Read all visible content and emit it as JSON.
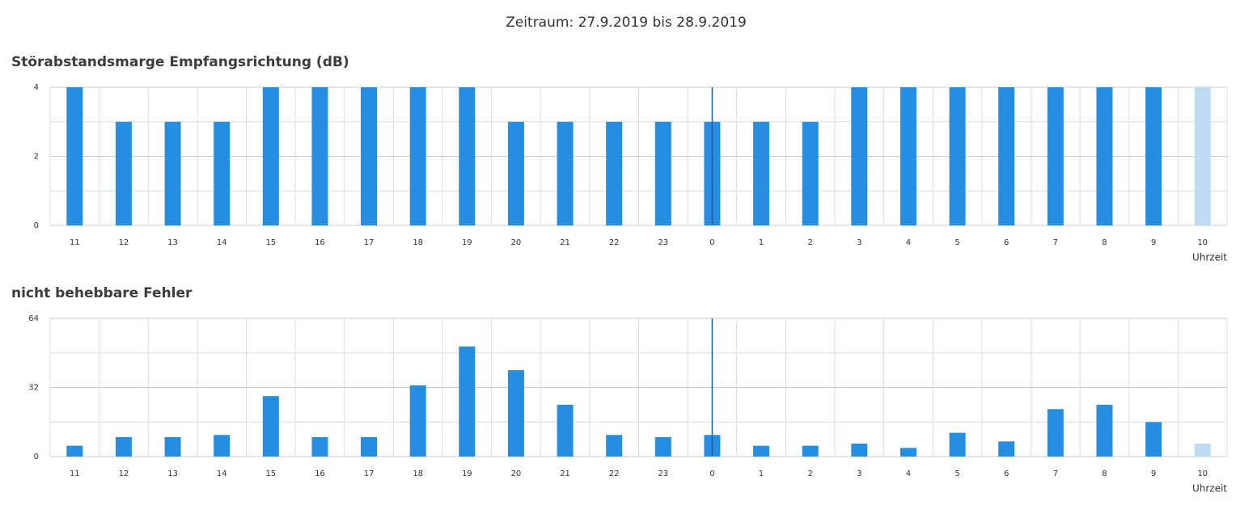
{
  "header": "Zeitraum: 27.9.2019 bis 28.9.2019",
  "chart_data": [
    {
      "type": "bar",
      "title": "Störabstandsmarge Empfangsrichtung (dB)",
      "x_label": "Uhrzeit",
      "categories": [
        "11",
        "12",
        "13",
        "14",
        "15",
        "16",
        "17",
        "18",
        "19",
        "20",
        "21",
        "22",
        "23",
        "0",
        "1",
        "2",
        "3",
        "4",
        "5",
        "6",
        "7",
        "8",
        "9",
        "10"
      ],
      "values": [
        4,
        3,
        3,
        3,
        4,
        4,
        4,
        4,
        4,
        3,
        3,
        3,
        3,
        3,
        3,
        3,
        4,
        4,
        4,
        4,
        4,
        4,
        4,
        4
      ],
      "colors": [
        "#268ee0",
        "#268ee0",
        "#268ee0",
        "#268ee0",
        "#268ee0",
        "#268ee0",
        "#268ee0",
        "#268ee0",
        "#268ee0",
        "#268ee0",
        "#268ee0",
        "#268ee0",
        "#268ee0",
        "#268ee0",
        "#268ee0",
        "#268ee0",
        "#268ee0",
        "#268ee0",
        "#268ee0",
        "#268ee0",
        "#268ee0",
        "#268ee0",
        "#268ee0",
        "#bcdcf3"
      ],
      "ylim": [
        0,
        4
      ],
      "yticks": [
        0,
        2,
        4
      ],
      "minor_yticks": [
        1,
        3
      ],
      "grid": true,
      "marker_index": 13,
      "marker_color": "#1a5fa8"
    },
    {
      "type": "bar",
      "title": "nicht behebbare Fehler",
      "x_label": "Uhrzeit",
      "categories": [
        "11",
        "12",
        "13",
        "14",
        "15",
        "16",
        "17",
        "18",
        "19",
        "20",
        "21",
        "22",
        "23",
        "0",
        "1",
        "2",
        "3",
        "4",
        "5",
        "6",
        "7",
        "8",
        "9",
        "10"
      ],
      "values": [
        5,
        9,
        9,
        10,
        28,
        9,
        9,
        33,
        51,
        40,
        24,
        10,
        9,
        10,
        5,
        5,
        6,
        4,
        11,
        7,
        22,
        24,
        16,
        6
      ],
      "colors": [
        "#268ee0",
        "#268ee0",
        "#268ee0",
        "#268ee0",
        "#268ee0",
        "#268ee0",
        "#268ee0",
        "#268ee0",
        "#268ee0",
        "#268ee0",
        "#268ee0",
        "#268ee0",
        "#268ee0",
        "#268ee0",
        "#268ee0",
        "#268ee0",
        "#268ee0",
        "#268ee0",
        "#268ee0",
        "#268ee0",
        "#268ee0",
        "#268ee0",
        "#268ee0",
        "#bcdcf3"
      ],
      "ylim": [
        0,
        64
      ],
      "yticks": [
        0,
        32,
        64
      ],
      "minor_yticks": [
        16,
        48
      ],
      "grid": true,
      "marker_index": 13,
      "marker_color": "#1a5fa8"
    }
  ]
}
